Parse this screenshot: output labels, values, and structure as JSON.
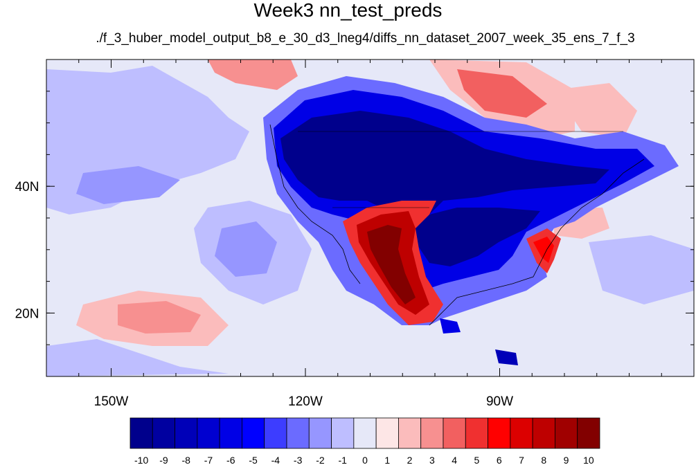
{
  "title": "Week3 nn_test_preds",
  "subtitle": "./f_3_huber_model_output_b8_e_30_d3_lneg4/diffs_nn_dataset_2007_week_35_ens_7_f_3",
  "map": {
    "extent": {
      "lon_min": -160,
      "lon_max": -60,
      "lat_min": 10,
      "lat_max": 60
    },
    "x_ticks": [
      {
        "lon": -150,
        "label": "150W"
      },
      {
        "lon": -120,
        "label": "120W"
      },
      {
        "lon": -90,
        "label": "90W"
      }
    ],
    "y_ticks": [
      {
        "lat": 40,
        "label": "40N"
      },
      {
        "lat": 20,
        "label": "20N"
      }
    ],
    "background_color": "#e6e8f8"
  },
  "colorbar": {
    "labels": [
      "-10",
      "-9",
      "-8",
      "-7",
      "-6",
      "-5",
      "-4",
      "-3",
      "-2",
      "-1",
      "0",
      "1",
      "2",
      "3",
      "4",
      "5",
      "6",
      "7",
      "8",
      "9",
      "10"
    ],
    "colors": [
      "#00008c",
      "#0000a0",
      "#0000b8",
      "#0000d0",
      "#0000e6",
      "#0000ff",
      "#3d3dff",
      "#6b6bff",
      "#9696ff",
      "#bebeff",
      "#e6e8f8",
      "#fde6e6",
      "#fbbcbc",
      "#f79090",
      "#f26060",
      "#f03030",
      "#ff0000",
      "#dc0000",
      "#be0000",
      "#a00000",
      "#820000"
    ]
  }
}
